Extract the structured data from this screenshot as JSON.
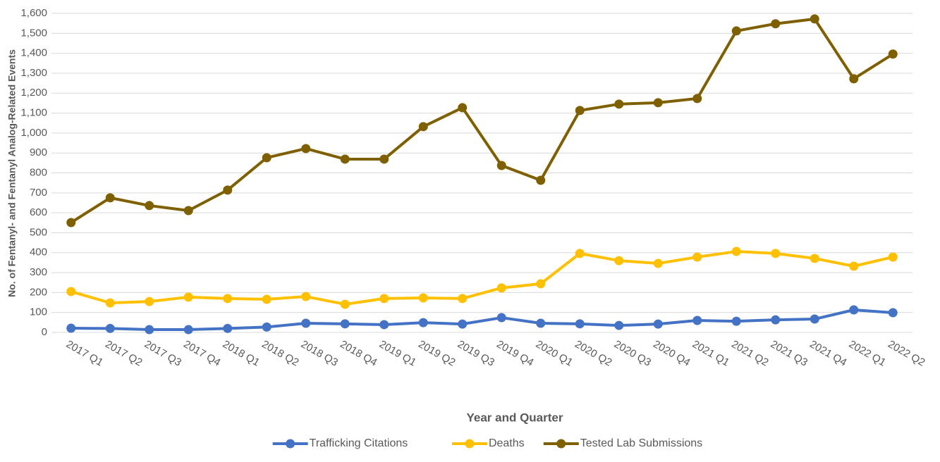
{
  "chart_data": {
    "type": "line",
    "x_label": "Year and Quarter",
    "y_label": "No. of Fentanyl- and Fentanyl Analog-Related Events",
    "categories": [
      "2017 Q1",
      "2017 Q2",
      "2017 Q3",
      "2017 Q4",
      "2018 Q1",
      "2018 Q2",
      "2018 Q3",
      "2018 Q4",
      "2019 Q1",
      "2019 Q2",
      "2019 Q3",
      "2019 Q4",
      "2020 Q1",
      "2020 Q2",
      "2020 Q3",
      "2020 Q4",
      "2021 Q1",
      "2021 Q2",
      "2021 Q3",
      "2021 Q4",
      "2022 Q1",
      "2022 Q2"
    ],
    "series": [
      {
        "name": "Trafficking Citations",
        "color": "#4472c4",
        "values": [
          21,
          20,
          14,
          14,
          20,
          27,
          46,
          43,
          39,
          49,
          42,
          74,
          46,
          43,
          35,
          42,
          60,
          56,
          63,
          67,
          113,
          99
        ]
      },
      {
        "name": "Deaths",
        "color": "#ffc000",
        "values": [
          205,
          148,
          155,
          177,
          170,
          166,
          180,
          141,
          170,
          173,
          170,
          223,
          244,
          396,
          360,
          346,
          378,
          406,
          396,
          371,
          332,
          378
        ]
      },
      {
        "name": "Tested Lab Submissions",
        "color": "#7f6000",
        "values": [
          551,
          675,
          636,
          611,
          714,
          876,
          922,
          869,
          869,
          1032,
          1127,
          837,
          763,
          1113,
          1145,
          1152,
          1173,
          1512,
          1548,
          1572,
          1272,
          1396
        ]
      }
    ],
    "ylim": [
      0,
      1600
    ],
    "yticks": [
      0,
      100,
      200,
      300,
      400,
      500,
      600,
      700,
      800,
      900,
      {
        "value": 1000,
        "label": "1,000"
      },
      {
        "value": 1100,
        "label": "1,100"
      },
      {
        "value": 1200,
        "label": "1,200"
      },
      {
        "value": 1300,
        "label": "1,300"
      },
      {
        "value": 1400,
        "label": "1,400"
      },
      {
        "value": 1500,
        "label": "1,500"
      },
      {
        "value": 1600,
        "label": "1,600"
      }
    ],
    "grid": true,
    "legend": "bottom"
  }
}
